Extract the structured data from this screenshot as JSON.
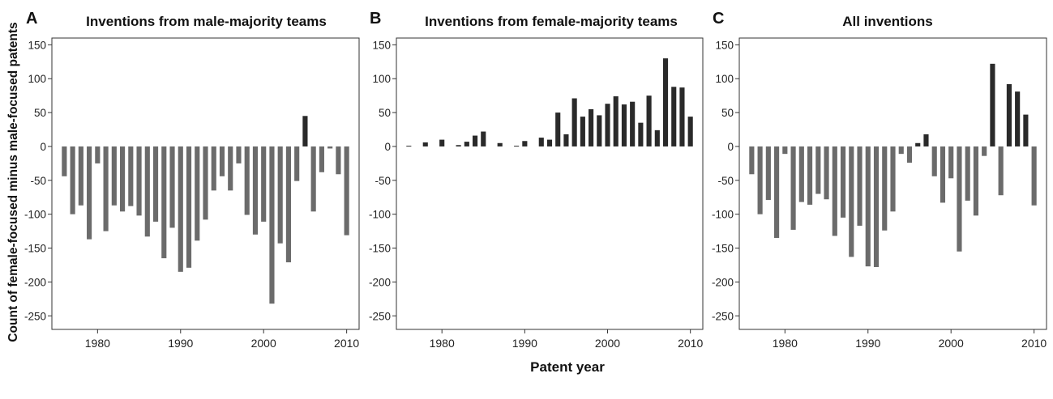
{
  "figure": {
    "ylabel": "Count of female-focused minus male-focused patents",
    "xlabel": "Patent year"
  },
  "colors": {
    "positive": "#2a2a2a",
    "negative": "#6b6b6b",
    "axis": "#333333"
  },
  "chart_data": [
    {
      "letter": "A",
      "type": "bar",
      "title": "Inventions from male-majority teams",
      "ylim": [
        -270,
        160
      ],
      "xlim": [
        1974.5,
        2011.5
      ],
      "yticks": [
        150,
        100,
        50,
        0,
        -50,
        -100,
        -150,
        -200,
        -250
      ],
      "xticks": [
        1980,
        1990,
        2000,
        2010
      ],
      "grid": false,
      "x": [
        1976,
        1977,
        1978,
        1979,
        1980,
        1981,
        1982,
        1983,
        1984,
        1985,
        1986,
        1987,
        1988,
        1989,
        1990,
        1991,
        1992,
        1993,
        1994,
        1995,
        1996,
        1997,
        1998,
        1999,
        2000,
        2001,
        2002,
        2003,
        2004,
        2005,
        2006,
        2007,
        2008,
        2009,
        2010
      ],
      "values": [
        -44,
        -100,
        -87,
        -137,
        -25,
        -125,
        -87,
        -96,
        -88,
        -102,
        -133,
        -111,
        -165,
        -120,
        -185,
        -179,
        -139,
        -108,
        -65,
        -44,
        -65,
        -25,
        -101,
        -130,
        -111,
        -232,
        -143,
        -171,
        -51,
        45,
        -96,
        -38,
        -3,
        -41,
        -131
      ]
    },
    {
      "letter": "B",
      "type": "bar",
      "title": "Inventions from female-majority teams",
      "ylim": [
        -270,
        160
      ],
      "xlim": [
        1974.5,
        2011.5
      ],
      "yticks": [
        150,
        100,
        50,
        0,
        -50,
        -100,
        -150,
        -200,
        -250
      ],
      "xticks": [
        1980,
        1990,
        2000,
        2010
      ],
      "grid": false,
      "x": [
        1976,
        1978,
        1980,
        1982,
        1983,
        1984,
        1985,
        1987,
        1989,
        1990,
        1992,
        1993,
        1994,
        1995,
        1996,
        1997,
        1998,
        1999,
        2000,
        2001,
        2002,
        2003,
        2004,
        2005,
        2006,
        2007,
        2008,
        2009,
        2010
      ],
      "values": [
        1,
        6,
        10,
        2,
        7,
        16,
        22,
        5,
        1,
        8,
        13,
        10,
        50,
        18,
        71,
        44,
        55,
        46,
        63,
        74,
        62,
        66,
        35,
        75,
        24,
        130,
        88,
        87,
        44
      ]
    },
    {
      "letter": "C",
      "type": "bar",
      "title": "All inventions",
      "ylim": [
        -270,
        160
      ],
      "xlim": [
        1974.5,
        2011.5
      ],
      "yticks": [
        150,
        100,
        50,
        0,
        -50,
        -100,
        -150,
        -200,
        -250
      ],
      "xticks": [
        1980,
        1990,
        2000,
        2010
      ],
      "grid": false,
      "x": [
        1976,
        1977,
        1978,
        1979,
        1980,
        1981,
        1982,
        1983,
        1984,
        1985,
        1986,
        1987,
        1988,
        1989,
        1990,
        1991,
        1992,
        1993,
        1994,
        1995,
        1996,
        1997,
        1998,
        1999,
        2000,
        2001,
        2002,
        2003,
        2004,
        2005,
        2006,
        2007,
        2008,
        2009,
        2010
      ],
      "values": [
        -41,
        -100,
        -79,
        -135,
        -11,
        -123,
        -82,
        -86,
        -70,
        -78,
        -132,
        -105,
        -163,
        -117,
        -177,
        -178,
        -124,
        -96,
        -11,
        -24,
        5,
        18,
        -44,
        -83,
        -47,
        -155,
        -80,
        -102,
        -14,
        122,
        -72,
        92,
        81,
        47,
        -87
      ]
    }
  ]
}
